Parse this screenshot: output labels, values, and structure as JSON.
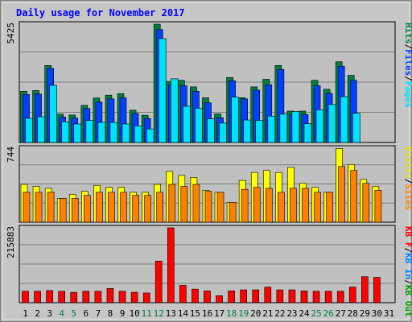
{
  "chart_data": {
    "type": "bar",
    "title": "Daily usage for November 2017",
    "categories": [
      "1",
      "2",
      "3",
      "4",
      "5",
      "6",
      "7",
      "8",
      "9",
      "10",
      "11",
      "12",
      "13",
      "14",
      "15",
      "16",
      "17",
      "18",
      "19",
      "20",
      "21",
      "22",
      "23",
      "24",
      "25",
      "26",
      "27",
      "28",
      "29",
      "30",
      "31"
    ],
    "weekend_days": [
      "4",
      "5",
      "11",
      "12",
      "18",
      "19",
      "25",
      "26"
    ],
    "grid": true,
    "panels": [
      {
        "id": "top",
        "ymax_label": "5425",
        "ymax": 5425,
        "right_labels": [
          {
            "text": "Hits",
            "color": "#008040"
          },
          {
            "text": "/",
            "color": "#000000"
          },
          {
            "text": "Files",
            "color": "#0040ff"
          },
          {
            "text": "/",
            "color": "#000000"
          },
          {
            "text": "Pages",
            "color": "#00e0ff"
          }
        ],
        "series": [
          {
            "name": "Hits",
            "color": "#008040",
            "values": [
              2350,
              2380,
              3530,
              1300,
              1260,
              1700,
              2040,
              2170,
              2240,
              1480,
              1250,
              5425,
              2800,
              2850,
              2550,
              2050,
              1310,
              2980,
              2050,
              2550,
              2900,
              3530,
              1440,
              1440,
              2850,
              2440,
              3700,
              3080,
              0,
              0,
              0
            ]
          },
          {
            "name": "Files",
            "color": "#0040ff",
            "values": [
              2200,
              2220,
              3400,
              1170,
              1120,
              1560,
              1850,
              2000,
              2050,
              1330,
              1100,
              5180,
              2650,
              2600,
              2350,
              1820,
              1140,
              2830,
              2000,
              2400,
              2650,
              3350,
              1290,
              1280,
              2600,
              2250,
              3500,
              2850,
              0,
              0,
              0
            ]
          },
          {
            "name": "Pages",
            "color": "#00e0ff",
            "values": [
              1110,
              1180,
              2620,
              950,
              850,
              1010,
              920,
              920,
              850,
              760,
              620,
              4760,
              2920,
              1660,
              1570,
              1080,
              890,
              2080,
              1030,
              1010,
              1210,
              1300,
              1420,
              860,
              1500,
              1740,
              2100,
              1340,
              0,
              0,
              0
            ]
          }
        ]
      },
      {
        "id": "middle",
        "ymax_label": "744",
        "ymax": 744,
        "right_labels": [
          {
            "text": "Visits",
            "color": "#e0e000"
          },
          {
            "text": "/",
            "color": "#000000"
          },
          {
            "text": "Sites",
            "color": "#ff8000"
          }
        ],
        "series": [
          {
            "name": "Visits",
            "color": "#ffff00",
            "values": [
              380,
              360,
              340,
              240,
              280,
              310,
              370,
              350,
              350,
              300,
              300,
              380,
              510,
              470,
              450,
              320,
              300,
              200,
              420,
              500,
              520,
              500,
              550,
              390,
              350,
              300,
              740,
              580,
              430,
              360,
              0
            ]
          },
          {
            "name": "Sites",
            "color": "#ff8000",
            "values": [
              300,
              300,
              300,
              240,
              240,
              270,
              300,
              300,
              300,
              270,
              270,
              300,
              380,
              360,
              380,
              310,
              300,
              200,
              330,
              350,
              340,
              300,
              340,
              340,
              300,
              300,
              560,
              520,
              390,
              320,
              0
            ]
          }
        ]
      },
      {
        "id": "bottom",
        "ymax_label": "215883",
        "ymax": 215883,
        "right_labels": [
          {
            "text": "KB F",
            "color": "#ff0000"
          },
          {
            "text": "/",
            "color": "#000000"
          },
          {
            "text": "KB In",
            "color": "#0080ff"
          },
          {
            "text": "/",
            "color": "#000000"
          },
          {
            "text": "KB Out",
            "color": "#00a000"
          }
        ],
        "series": [
          {
            "name": "KB F",
            "color": "#ff0000",
            "values": [
              33000,
              33000,
              35000,
              33000,
              30000,
              33000,
              33000,
              41000,
              33000,
              30000,
              28000,
              120000,
              215883,
              50000,
              39000,
              34000,
              20000,
              34000,
              37000,
              37000,
              45000,
              37000,
              37000,
              34000,
              33000,
              33000,
              33000,
              45000,
              75000,
              73000,
              0
            ]
          }
        ]
      }
    ]
  }
}
